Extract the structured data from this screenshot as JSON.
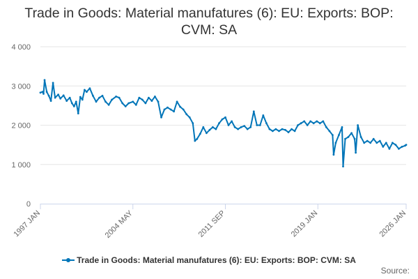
{
  "chart_data": {
    "type": "line",
    "title": "Trade in Goods: Material manufatures (6): EU: Exports: BOP: CVM: SA",
    "xlabel": "",
    "ylabel": "",
    "x_range": [
      "1997 JAN",
      "2026 JAN"
    ],
    "x_tick_labels": [
      "1997 JAN",
      "2004 MAY",
      "2011 SEP",
      "2019 JAN",
      "2026 JAN"
    ],
    "y_tick_labels": [
      "0",
      "1 000",
      "2 000",
      "3 000",
      "4 000"
    ],
    "ylim": [
      0,
      4000
    ],
    "grid": "horizontal",
    "legend_position": "bottom",
    "line_color": "#0075b8",
    "series": [
      {
        "name": "Trade in Goods: Material manufatures (6): EU: Exports: BOP: CVM: SA",
        "points": [
          [
            "1997 JAN",
            2830
          ],
          [
            "1997 MAR",
            2850
          ],
          [
            "1997 APR",
            2800
          ],
          [
            "1997 MAY",
            3150
          ],
          [
            "1997 JUL",
            2850
          ],
          [
            "1997 SEP",
            2750
          ],
          [
            "1997 NOV",
            2620
          ],
          [
            "1998 JAN",
            3080
          ],
          [
            "1998 MAR",
            2700
          ],
          [
            "1998 JUN",
            2780
          ],
          [
            "1998 AUG",
            2680
          ],
          [
            "1998 NOV",
            2760
          ],
          [
            "1999 FEB",
            2620
          ],
          [
            "1999 MAY",
            2700
          ],
          [
            "1999 JUL",
            2560
          ],
          [
            "1999 SEP",
            2480
          ],
          [
            "1999 NOV",
            2600
          ],
          [
            "2000 JAN",
            2300
          ],
          [
            "2000 MAR",
            2720
          ],
          [
            "2000 MAY",
            2650
          ],
          [
            "2000 JUL",
            2900
          ],
          [
            "2000 SEP",
            2850
          ],
          [
            "2000 DEC",
            2940
          ],
          [
            "2001 MAR",
            2750
          ],
          [
            "2001 JUN",
            2600
          ],
          [
            "2001 SEP",
            2700
          ],
          [
            "2001 DEC",
            2750
          ],
          [
            "2002 MAR",
            2600
          ],
          [
            "2002 JUN",
            2520
          ],
          [
            "2002 SEP",
            2650
          ],
          [
            "2003 JAN",
            2730
          ],
          [
            "2003 APR",
            2700
          ],
          [
            "2003 JUL",
            2560
          ],
          [
            "2003 OCT",
            2480
          ],
          [
            "2004 JAN",
            2560
          ],
          [
            "2004 MAY",
            2600
          ],
          [
            "2004 AUG",
            2520
          ],
          [
            "2004 NOV",
            2700
          ],
          [
            "2005 FEB",
            2650
          ],
          [
            "2005 MAY",
            2560
          ],
          [
            "2005 AUG",
            2700
          ],
          [
            "2005 NOV",
            2620
          ],
          [
            "2006 FEB",
            2730
          ],
          [
            "2006 MAY",
            2600
          ],
          [
            "2006 AUG",
            2200
          ],
          [
            "2006 NOV",
            2400
          ],
          [
            "2007 FEB",
            2450
          ],
          [
            "2007 MAY",
            2400
          ],
          [
            "2007 AUG",
            2350
          ],
          [
            "2007 NOV",
            2600
          ],
          [
            "2008 FEB",
            2470
          ],
          [
            "2008 MAY",
            2400
          ],
          [
            "2008 AUG",
            2280
          ],
          [
            "2008 NOV",
            2200
          ],
          [
            "2009 FEB",
            2050
          ],
          [
            "2009 APR",
            1600
          ],
          [
            "2009 JUN",
            1650
          ],
          [
            "2009 SEP",
            1780
          ],
          [
            "2009 DEC",
            1950
          ],
          [
            "2010 MAR",
            1800
          ],
          [
            "2010 JUN",
            1880
          ],
          [
            "2010 SEP",
            1950
          ],
          [
            "2010 DEC",
            1900
          ],
          [
            "2011 MAR",
            2050
          ],
          [
            "2011 JUN",
            2150
          ],
          [
            "2011 SEP",
            2200
          ],
          [
            "2011 DEC",
            2000
          ],
          [
            "2012 MAR",
            2100
          ],
          [
            "2012 JUN",
            1950
          ],
          [
            "2012 SEP",
            1900
          ],
          [
            "2012 DEC",
            1950
          ],
          [
            "2013 MAR",
            1980
          ],
          [
            "2013 JUN",
            1900
          ],
          [
            "2013 SEP",
            1950
          ],
          [
            "2013 DEC",
            2350
          ],
          [
            "2014 MAR",
            2000
          ],
          [
            "2014 JUN",
            2000
          ],
          [
            "2014 SEP",
            2250
          ],
          [
            "2014 DEC",
            2050
          ],
          [
            "2015 MAR",
            1900
          ],
          [
            "2015 JUN",
            1850
          ],
          [
            "2015 SEP",
            1900
          ],
          [
            "2015 DEC",
            1850
          ],
          [
            "2016 MAR",
            1900
          ],
          [
            "2016 JUN",
            1880
          ],
          [
            "2016 SEP",
            1820
          ],
          [
            "2016 DEC",
            1900
          ],
          [
            "2017 MAR",
            1850
          ],
          [
            "2017 JUN",
            2000
          ],
          [
            "2017 SEP",
            2050
          ],
          [
            "2017 DEC",
            2100
          ],
          [
            "2018 MAR",
            2000
          ],
          [
            "2018 JUN",
            2100
          ],
          [
            "2018 SEP",
            2050
          ],
          [
            "2018 DEC",
            2100
          ],
          [
            "2019 MAR",
            2050
          ],
          [
            "2019 JUN",
            2100
          ],
          [
            "2019 SEP",
            1950
          ],
          [
            "2019 DEC",
            1850
          ],
          [
            "2020 MAR",
            1750
          ],
          [
            "2020 APR",
            1250
          ],
          [
            "2020 JUN",
            1550
          ],
          [
            "2020 SEP",
            1750
          ],
          [
            "2020 DEC",
            1950
          ],
          [
            "2021 JAN",
            950
          ],
          [
            "2021 MAR",
            1650
          ],
          [
            "2021 JUN",
            1700
          ],
          [
            "2021 SEP",
            1800
          ],
          [
            "2021 DEC",
            1650
          ],
          [
            "2022 JAN",
            1300
          ],
          [
            "2022 MAR",
            2000
          ],
          [
            "2022 JUN",
            1700
          ],
          [
            "2022 SEP",
            1550
          ],
          [
            "2022 DEC",
            1600
          ],
          [
            "2023 MAR",
            1550
          ],
          [
            "2023 JUN",
            1650
          ],
          [
            "2023 SEP",
            1550
          ],
          [
            "2023 DEC",
            1600
          ],
          [
            "2024 MAR",
            1450
          ],
          [
            "2024 JUN",
            1550
          ],
          [
            "2024 SEP",
            1400
          ],
          [
            "2024 DEC",
            1550
          ],
          [
            "2025 MAR",
            1500
          ],
          [
            "2025 JUN",
            1400
          ],
          [
            "2025 SEP",
            1450
          ],
          [
            "2025 DEC",
            1480
          ],
          [
            "2026 JAN",
            1500
          ]
        ]
      }
    ]
  },
  "credits": "Source:"
}
